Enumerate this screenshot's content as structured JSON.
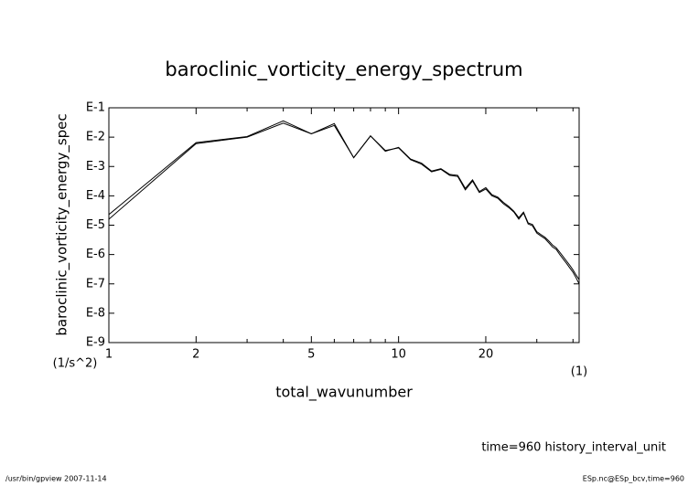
{
  "chart_data": {
    "type": "line",
    "title": "baroclinic_vorticity_energy_spectrum",
    "ylabel": "baroclinic_vorticity_energy_spec",
    "yunit": "(1/s^2)",
    "xlabel": "total_wavunumber",
    "xunit": "(1)",
    "note": "time=960 history_interval_unit",
    "footer_left": "/usr/bin/gpview   2007-11-14",
    "footer_right": "ESp.nc@ESp_bcv,time=960",
    "xscale": "log",
    "yscale": "log",
    "xlim": [
      1,
      42
    ],
    "ylim": [
      1e-09,
      0.1
    ],
    "xticks": [
      1,
      2,
      5,
      10,
      20
    ],
    "xminorticks": [
      3,
      4,
      6,
      7,
      8,
      9,
      30,
      40
    ],
    "yticks": [
      {
        "value": 1e-09,
        "label": "E-9"
      },
      {
        "value": 1e-08,
        "label": "E-8"
      },
      {
        "value": 1e-07,
        "label": "E-7"
      },
      {
        "value": 1e-06,
        "label": "E-6"
      },
      {
        "value": 1e-05,
        "label": "E-5"
      },
      {
        "value": 0.0001,
        "label": "E-4"
      },
      {
        "value": 0.001,
        "label": "E-3"
      },
      {
        "value": 0.01,
        "label": "E-2"
      },
      {
        "value": 0.1,
        "label": "E-1"
      }
    ],
    "x": [
      1,
      2,
      3,
      4,
      5,
      6,
      7,
      8,
      9,
      10,
      11,
      12,
      13,
      14,
      15,
      16,
      17,
      18,
      19,
      20,
      21,
      22,
      23,
      24,
      25,
      26,
      27,
      28,
      29,
      30,
      31,
      32,
      33,
      34,
      35,
      36,
      37,
      38,
      39,
      40,
      41,
      42
    ],
    "series": [
      {
        "color": "#000000",
        "values": [
          1.6e-05,
          0.006,
          0.01,
          0.03,
          0.013,
          0.025,
          0.002,
          0.011,
          0.0035,
          0.0043,
          0.0017,
          0.0012,
          0.00066,
          0.0008,
          0.0005,
          0.00046,
          0.00016,
          0.00032,
          0.00013,
          0.00017,
          0.0001,
          8.3e-05,
          5.4e-05,
          4e-05,
          2.8e-05,
          1.6e-05,
          2.6e-05,
          1.1e-05,
          9.5e-06,
          5.4e-06,
          4.3e-06,
          3.5e-06,
          2.5e-06,
          1.8e-06,
          1.5e-06,
          1e-06,
          7e-07,
          5e-07,
          3.5e-07,
          2.5e-07,
          1.6e-07,
          1e-07
        ]
      },
      {
        "color": "#000000",
        "values": [
          2.3e-05,
          0.0065,
          0.0105,
          0.036,
          0.013,
          0.029,
          0.002,
          0.011,
          0.0033,
          0.0045,
          0.0018,
          0.0013,
          0.0007,
          0.00084,
          0.00054,
          0.0005,
          0.00018,
          0.00035,
          0.00014,
          0.00019,
          0.00011,
          9e-05,
          6e-05,
          4.4e-05,
          3e-05,
          1.8e-05,
          2.8e-05,
          1.2e-05,
          1.05e-05,
          6e-06,
          4.8e-06,
          3.9e-06,
          2.9e-06,
          2.1e-06,
          1.7e-06,
          1.2e-06,
          8.5e-07,
          6e-07,
          4.3e-07,
          3e-07,
          2e-07,
          1.4e-07
        ]
      }
    ]
  }
}
